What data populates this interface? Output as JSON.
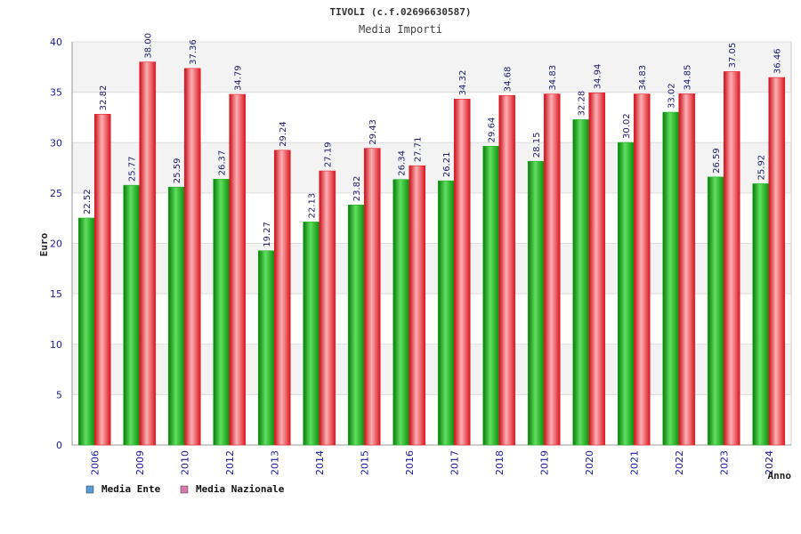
{
  "chart_data": {
    "type": "bar",
    "title": "TIVOLI (c.f.02696630587)",
    "subtitle": "Media Importi",
    "xlabel": "Anno",
    "ylabel": "Euro",
    "ylim": [
      0,
      40
    ],
    "yticks": [
      0,
      5,
      10,
      15,
      20,
      25,
      30,
      35,
      40
    ],
    "grid": true,
    "legend_position": "bottom-left",
    "categories": [
      "2006",
      "2009",
      "2010",
      "2012",
      "2013",
      "2014",
      "2015",
      "2016",
      "2017",
      "2018",
      "2019",
      "2020",
      "2021",
      "2022",
      "2023",
      "2024"
    ],
    "series": [
      {
        "name": "Media Ente",
        "color": "#1fb21f",
        "legend_color": "#5b9bd5",
        "values": [
          22.52,
          25.77,
          25.59,
          26.37,
          19.27,
          22.13,
          23.82,
          26.34,
          26.21,
          29.64,
          28.15,
          32.28,
          30.02,
          33.02,
          26.59,
          25.92
        ],
        "labels": [
          "22.52",
          "25.77",
          "25.59",
          "26.37",
          "19.27",
          "22.13",
          "23.82",
          "26.34",
          "26.21",
          "29.64",
          "28.15",
          "32.28",
          "30.02",
          "33.02",
          "26.59",
          "25.92"
        ]
      },
      {
        "name": "Media Nazionale",
        "color": "#e8202a",
        "legend_color": "#d97bb0",
        "values": [
          32.82,
          38.0,
          37.36,
          34.79,
          29.24,
          27.19,
          29.43,
          27.71,
          34.32,
          34.68,
          34.83,
          34.94,
          34.83,
          34.85,
          37.05,
          36.46
        ],
        "labels": [
          "32.82",
          "38.00",
          "37.36",
          "34.79",
          "29.24",
          "27.19",
          "29.43",
          "27.71",
          "34.32",
          "34.68",
          "34.83",
          "34.94",
          "34.83",
          "34.85",
          "37.05",
          "36.46"
        ]
      }
    ]
  }
}
